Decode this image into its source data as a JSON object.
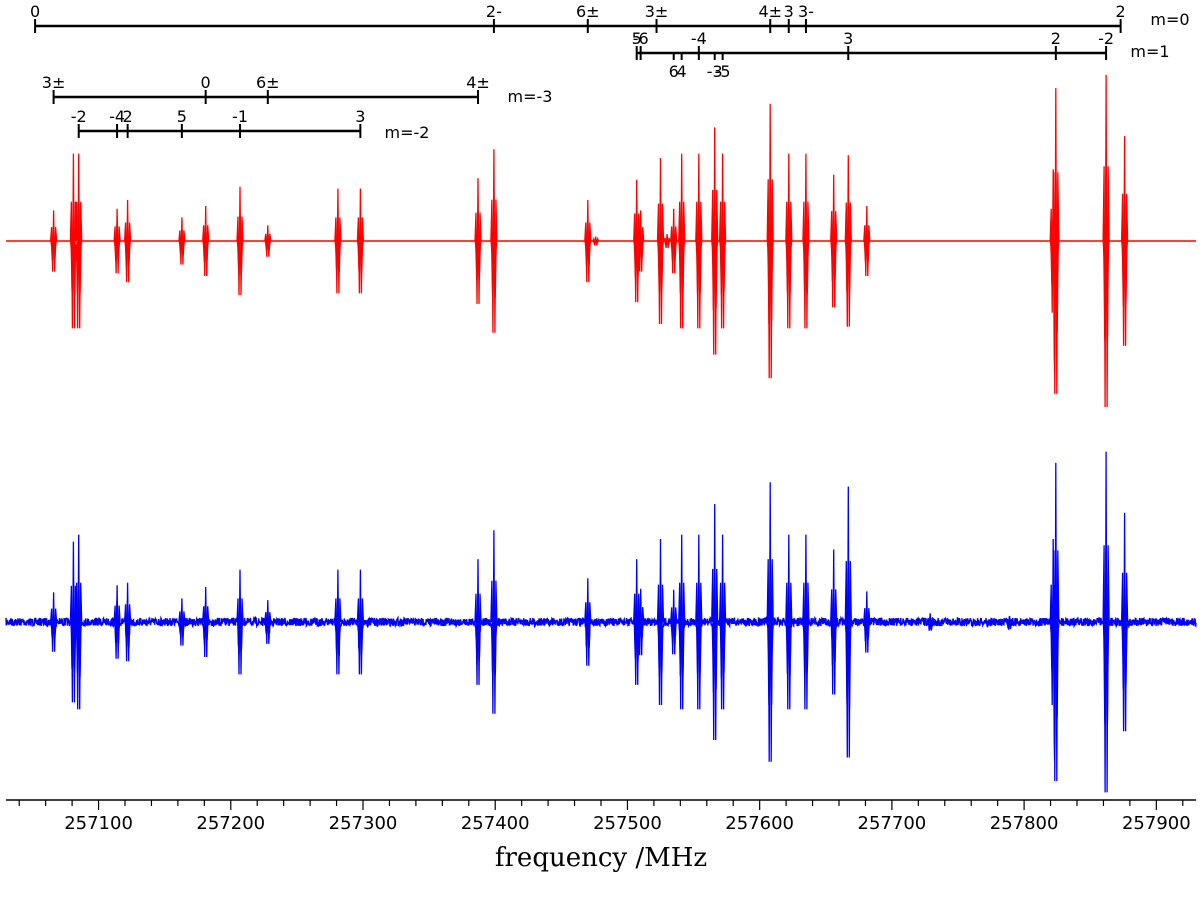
{
  "chart_data": {
    "type": "line",
    "xlabel": "frequency /MHz",
    "xlim": [
      257030,
      257930
    ],
    "x_ticks": [
      257100,
      257200,
      257300,
      257400,
      257500,
      257600,
      257700,
      257800,
      257900
    ],
    "x_tick_labels": [
      "257100",
      "257200",
      "257300",
      "257400",
      "257500",
      "257600",
      "257700",
      "257800",
      "257900"
    ],
    "grid": false,
    "series": [
      {
        "color": "#ff0000",
        "noise": false,
        "lines": [
          {
            "x": 257066,
            "a": 0.35
          },
          {
            "x": 257081,
            "a": 1.0
          },
          {
            "x": 257085,
            "a": 1.0
          },
          {
            "x": 257114,
            "a": 0.37
          },
          {
            "x": 257122,
            "a": 0.47
          },
          {
            "x": 257163,
            "a": 0.27
          },
          {
            "x": 257181,
            "a": 0.4
          },
          {
            "x": 257207,
            "a": 0.62
          },
          {
            "x": 257228,
            "a": 0.18
          },
          {
            "x": 257281,
            "a": 0.6
          },
          {
            "x": 257298,
            "a": 0.6
          },
          {
            "x": 257387,
            "a": 0.72
          },
          {
            "x": 257399,
            "a": 1.05
          },
          {
            "x": 257470,
            "a": 0.47
          },
          {
            "x": 257476,
            "a": 0.05
          },
          {
            "x": 257507,
            "a": 0.7
          },
          {
            "x": 257510,
            "a": 0.35
          },
          {
            "x": 257525,
            "a": 0.95
          },
          {
            "x": 257530,
            "a": 0.08
          },
          {
            "x": 257535,
            "a": 0.37
          },
          {
            "x": 257541,
            "a": 1.0
          },
          {
            "x": 257554,
            "a": 1.0
          },
          {
            "x": 257566,
            "a": 1.3
          },
          {
            "x": 257572,
            "a": 1.0
          },
          {
            "x": 257608,
            "a": 1.57
          },
          {
            "x": 257622,
            "a": 1.0
          },
          {
            "x": 257635,
            "a": 1.0
          },
          {
            "x": 257656,
            "a": 0.76
          },
          {
            "x": 257667,
            "a": 0.98
          },
          {
            "x": 257681,
            "a": 0.4
          },
          {
            "x": 257822,
            "a": 0.82
          },
          {
            "x": 257824,
            "a": 1.75
          },
          {
            "x": 257862,
            "a": 1.9
          },
          {
            "x": 257876,
            "a": 1.2
          }
        ]
      },
      {
        "color": "#0000ff",
        "noise": true,
        "lines": [
          {
            "x": 257066,
            "a": 0.34
          },
          {
            "x": 257081,
            "a": 0.92
          },
          {
            "x": 257085,
            "a": 1.0
          },
          {
            "x": 257114,
            "a": 0.42
          },
          {
            "x": 257122,
            "a": 0.45
          },
          {
            "x": 257163,
            "a": 0.27
          },
          {
            "x": 257181,
            "a": 0.4
          },
          {
            "x": 257207,
            "a": 0.6
          },
          {
            "x": 257228,
            "a": 0.25
          },
          {
            "x": 257281,
            "a": 0.6
          },
          {
            "x": 257298,
            "a": 0.6
          },
          {
            "x": 257387,
            "a": 0.72
          },
          {
            "x": 257399,
            "a": 1.05
          },
          {
            "x": 257470,
            "a": 0.5
          },
          {
            "x": 257507,
            "a": 0.72
          },
          {
            "x": 257510,
            "a": 0.38
          },
          {
            "x": 257525,
            "a": 0.95
          },
          {
            "x": 257535,
            "a": 0.37
          },
          {
            "x": 257541,
            "a": 1.0
          },
          {
            "x": 257554,
            "a": 1.0
          },
          {
            "x": 257566,
            "a": 1.35
          },
          {
            "x": 257572,
            "a": 1.0
          },
          {
            "x": 257608,
            "a": 1.6
          },
          {
            "x": 257622,
            "a": 1.0
          },
          {
            "x": 257635,
            "a": 1.0
          },
          {
            "x": 257656,
            "a": 0.83
          },
          {
            "x": 257667,
            "a": 1.55
          },
          {
            "x": 257681,
            "a": 0.35
          },
          {
            "x": 257729,
            "a": 0.1
          },
          {
            "x": 257789,
            "a": 0.07
          },
          {
            "x": 257822,
            "a": 0.95
          },
          {
            "x": 257824,
            "a": 1.82
          },
          {
            "x": 257862,
            "a": 1.95
          },
          {
            "x": 257876,
            "a": 1.25
          }
        ]
      }
    ],
    "assignments": [
      {
        "m_label": "m=0",
        "start": 257052,
        "end": 257873,
        "labels": [
          {
            "text": "0",
            "x": 257052
          },
          {
            "text": "2-",
            "x": 257399
          },
          {
            "text": "6±",
            "x": 257470
          },
          {
            "text": "3±",
            "x": 257522
          },
          {
            "text": "4±",
            "x": 257608
          },
          {
            "text": "3",
            "x": 257622
          },
          {
            "text": "3-",
            "x": 257635
          },
          {
            "text": "2",
            "x": 257873
          }
        ]
      },
      {
        "m_label": "m=1",
        "start": 257507,
        "end": 257862,
        "labels": [
          {
            "text": "5",
            "x": 257507,
            "pos": "above"
          },
          {
            "text": "-6",
            "x": 257510,
            "pos": "above"
          },
          {
            "text": "6",
            "x": 257535,
            "pos": "below"
          },
          {
            "text": "4",
            "x": 257541,
            "pos": "below"
          },
          {
            "text": "-4",
            "x": 257554,
            "pos": "above"
          },
          {
            "text": "-3",
            "x": 257566,
            "pos": "below"
          },
          {
            "text": "-5",
            "x": 257572,
            "pos": "below"
          },
          {
            "text": "3",
            "x": 257667,
            "pos": "above"
          },
          {
            "text": "2",
            "x": 257824,
            "pos": "above"
          },
          {
            "text": "-2",
            "x": 257862,
            "pos": "above"
          }
        ]
      },
      {
        "m_label": "m=-3",
        "start": 257066,
        "end": 257387,
        "labels": [
          {
            "text": "3±",
            "x": 257066
          },
          {
            "text": "0",
            "x": 257181
          },
          {
            "text": "6±",
            "x": 257228
          },
          {
            "text": "4±",
            "x": 257387
          }
        ]
      },
      {
        "m_label": "m=-2",
        "start": 257085,
        "end": 257298,
        "labels": [
          {
            "text": "-2",
            "x": 257085
          },
          {
            "text": "-4",
            "x": 257114
          },
          {
            "text": "2",
            "x": 257122
          },
          {
            "text": "5",
            "x": 257163
          },
          {
            "text": "-1",
            "x": 257207
          },
          {
            "text": "3",
            "x": 257298
          }
        ]
      }
    ]
  }
}
